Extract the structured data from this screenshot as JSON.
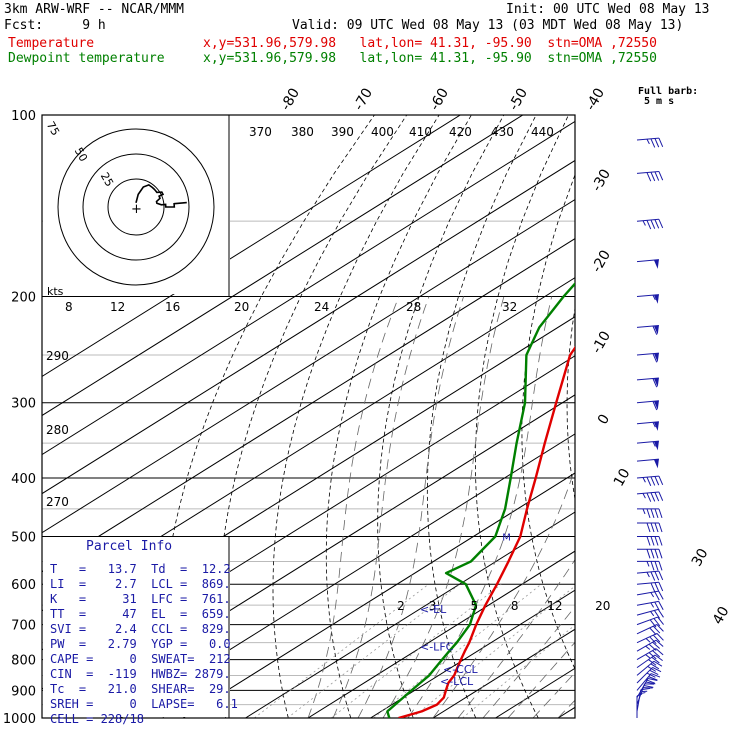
{
  "header": {
    "model": "3km ARW-WRF -- NCAR/MMM",
    "init": "Init: 00 UTC Wed 08 May 13",
    "fcst": "Fcst:     9 h",
    "valid": "Valid: 09 UTC Wed 08 May 13 (03 MDT Wed 08 May 13)",
    "temp_label": "Temperature",
    "dew_label": "Dewpoint temperature",
    "temp_loc": "x,y=531.96,579.98   lat,lon= 41.31, -95.90  stn=OMA ,72550",
    "dew_loc": "x,y=531.96,579.98   lat,lon= 41.31, -95.90  stn=OMA ,72550"
  },
  "colors": {
    "temperature": "#e00000",
    "dewpoint": "#008000",
    "parcel_text": "#1a1aa6",
    "wind": "#1a1aa6"
  },
  "legend": {
    "full_barb": "Full barb:",
    "full_barb_units": "5 m s"
  },
  "parcel_info": {
    "title": "Parcel Info",
    "rows": [
      "T   =   13.7  Td  =  12.2",
      "LI  =    2.7  LCL =  869.",
      "K   =     31  LFC =  761.",
      "TT  =     47  EL  =  659.",
      "SVI =    2.4  CCL =  829.",
      "PW  =   2.79  YGP =   0.0",
      "CAPE =     0  SWEAT=  212",
      "CIN  =  -119  HWBZ= 2879.",
      "Tc  =   21.0  SHEAR=  29.",
      "SREH =     0  LAPSE=   6.1",
      "CELL = 228/18"
    ]
  },
  "chart_data": {
    "type": "line",
    "title": "",
    "xlabel": "Temperature (C)",
    "ylabel": "Pressure (hPa)",
    "pressure_range": [
      1000,
      100
    ],
    "temp_range_at_1000": [
      -40,
      40
    ],
    "pressure_ticks": [
      "100",
      "200",
      "300",
      "400",
      "500",
      "600",
      "700",
      "800",
      "900",
      "1000"
    ],
    "temp_tick_labels_top": [
      "-80",
      "-70",
      "-60",
      "-50",
      "-40"
    ],
    "temp_tick_labels_right": [
      "-30",
      "-20",
      "-10",
      "0",
      "10",
      "30",
      "40"
    ],
    "theta_labels": [
      "370",
      "380",
      "390",
      "400",
      "410",
      "420",
      "430",
      "440"
    ],
    "theta_labels_left": [
      "290",
      "280",
      "270"
    ],
    "mixing_ratio_labels": [
      "2",
      "3",
      "5",
      "8",
      "12",
      "20"
    ],
    "hodograph_labels": [
      "8",
      "12",
      "16",
      "20",
      "24",
      "28",
      "32"
    ],
    "hodograph_unit": "kts",
    "hodograph_rings": [
      "75",
      "50",
      "25"
    ],
    "markers": [
      "<-EL",
      "<-LFC",
      "<-CCL",
      "<-LCL"
    ],
    "marker_pressures": [
      659,
      761,
      829,
      869
    ],
    "freezing_level_marker": "M",
    "series": [
      {
        "name": "Temperature",
        "points": [
          [
            1000,
            14.5
          ],
          [
            975,
            16.5
          ],
          [
            950,
            17.2
          ],
          [
            925,
            16.5
          ],
          [
            900,
            15.0
          ],
          [
            875,
            13.5
          ],
          [
            850,
            12.5
          ],
          [
            825,
            11.0
          ],
          [
            800,
            9.5
          ],
          [
            775,
            8.0
          ],
          [
            750,
            6.5
          ],
          [
            700,
            3.0
          ],
          [
            650,
            -0.5
          ],
          [
            600,
            -4.0
          ],
          [
            550,
            -8.0
          ],
          [
            500,
            -12.5
          ],
          [
            450,
            -18.5
          ],
          [
            400,
            -25.0
          ],
          [
            350,
            -32.5
          ],
          [
            300,
            -41.0
          ],
          [
            250,
            -51.0
          ],
          [
            225,
            -55.0
          ],
          [
            200,
            -54.0
          ],
          [
            175,
            -55.0
          ],
          [
            150,
            -57.0
          ],
          [
            125,
            -59.0
          ],
          [
            100,
            -62.0
          ]
        ]
      },
      {
        "name": "Dewpoint temperature",
        "points": [
          [
            1000,
            13.0
          ],
          [
            975,
            11.0
          ],
          [
            950,
            10.5
          ],
          [
            925,
            10.0
          ],
          [
            900,
            9.5
          ],
          [
            875,
            9.0
          ],
          [
            850,
            8.5
          ],
          [
            825,
            7.5
          ],
          [
            800,
            6.5
          ],
          [
            775,
            5.5
          ],
          [
            750,
            4.5
          ],
          [
            700,
            2.0
          ],
          [
            650,
            -2.0
          ],
          [
            600,
            -9.0
          ],
          [
            575,
            -15.0
          ],
          [
            550,
            -14.0
          ],
          [
            500,
            -16.5
          ],
          [
            450,
            -22.0
          ],
          [
            400,
            -29.0
          ],
          [
            350,
            -37.0
          ],
          [
            300,
            -46.0
          ],
          [
            250,
            -58.0
          ],
          [
            225,
            -63.0
          ],
          [
            200,
            -67.0
          ],
          [
            175,
            -71.0
          ],
          [
            150,
            -76.0
          ],
          [
            125,
            -79.0
          ],
          [
            100,
            -82.0
          ]
        ]
      }
    ],
    "wind_profile": [
      {
        "p": 1000,
        "dir": 180,
        "spd": 5
      },
      {
        "p": 975,
        "dir": 190,
        "spd": 15
      },
      {
        "p": 950,
        "dir": 200,
        "spd": 25
      },
      {
        "p": 925,
        "dir": 210,
        "spd": 30
      },
      {
        "p": 900,
        "dir": 220,
        "spd": 30
      },
      {
        "p": 875,
        "dir": 225,
        "spd": 30
      },
      {
        "p": 850,
        "dir": 230,
        "spd": 30
      },
      {
        "p": 825,
        "dir": 235,
        "spd": 30
      },
      {
        "p": 800,
        "dir": 240,
        "spd": 35
      },
      {
        "p": 775,
        "dir": 240,
        "spd": 35
      },
      {
        "p": 750,
        "dir": 245,
        "spd": 35
      },
      {
        "p": 725,
        "dir": 245,
        "spd": 30
      },
      {
        "p": 700,
        "dir": 250,
        "spd": 30
      },
      {
        "p": 675,
        "dir": 255,
        "spd": 25
      },
      {
        "p": 650,
        "dir": 260,
        "spd": 25
      },
      {
        "p": 625,
        "dir": 260,
        "spd": 25
      },
      {
        "p": 600,
        "dir": 265,
        "spd": 30
      },
      {
        "p": 575,
        "dir": 265,
        "spd": 35
      },
      {
        "p": 550,
        "dir": 270,
        "spd": 35
      },
      {
        "p": 525,
        "dir": 270,
        "spd": 40
      },
      {
        "p": 500,
        "dir": 270,
        "spd": 40
      },
      {
        "p": 475,
        "dir": 270,
        "spd": 40
      },
      {
        "p": 450,
        "dir": 270,
        "spd": 45
      },
      {
        "p": 425,
        "dir": 265,
        "spd": 45
      },
      {
        "p": 400,
        "dir": 265,
        "spd": 45
      },
      {
        "p": 375,
        "dir": 265,
        "spd": 50
      },
      {
        "p": 350,
        "dir": 265,
        "spd": 55
      },
      {
        "p": 325,
        "dir": 265,
        "spd": 55
      },
      {
        "p": 300,
        "dir": 265,
        "spd": 60
      },
      {
        "p": 275,
        "dir": 265,
        "spd": 60
      },
      {
        "p": 250,
        "dir": 265,
        "spd": 60
      },
      {
        "p": 225,
        "dir": 265,
        "spd": 60
      },
      {
        "p": 200,
        "dir": 265,
        "spd": 55
      },
      {
        "p": 175,
        "dir": 265,
        "spd": 50
      },
      {
        "p": 150,
        "dir": 265,
        "spd": 45
      },
      {
        "p": 125,
        "dir": 265,
        "spd": 40
      },
      {
        "p": 110,
        "dir": 265,
        "spd": 35
      }
    ]
  }
}
